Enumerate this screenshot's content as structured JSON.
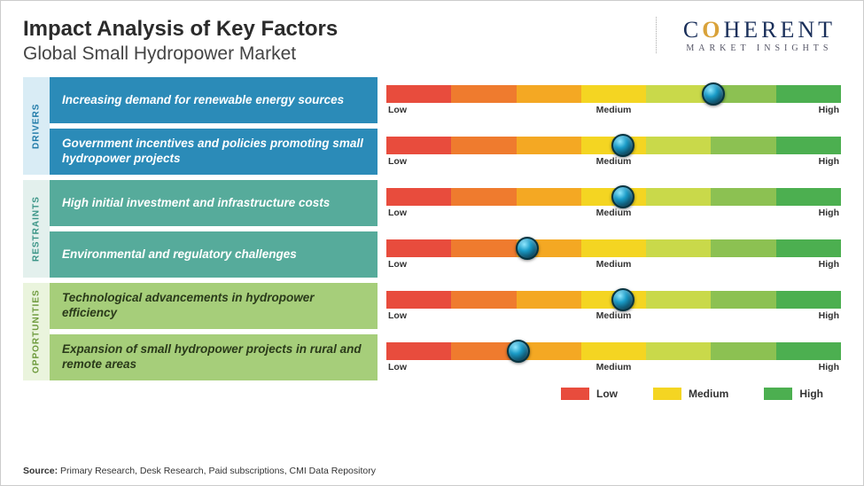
{
  "title": "Impact Analysis of Key Factors",
  "subtitle": "Global Small Hydropower Market",
  "logo": {
    "text_main": "COHERENT",
    "text_sub": "MARKET INSIGHTS"
  },
  "scale_segments": [
    "#e84c3d",
    "#ef7b2e",
    "#f4a823",
    "#f4d522",
    "#c9d94a",
    "#8cc152",
    "#4caf50"
  ],
  "scale_labels": {
    "low": "Low",
    "mid": "Medium",
    "high": "High"
  },
  "categories": [
    {
      "name": "DRIVERS",
      "tab_bg": "#d9ecf5",
      "tab_color": "#1f7aa8",
      "row_bg": "#2b8bb8",
      "rows": [
        {
          "label": "Increasing demand for renewable energy sources",
          "marker_pct": 72
        },
        {
          "label": "Government incentives and policies promoting small hydropower projects",
          "marker_pct": 52
        }
      ]
    },
    {
      "name": "RESTRAINTS",
      "tab_bg": "#e3f0ed",
      "tab_color": "#3a9486",
      "row_bg": "#56ab9b",
      "rows": [
        {
          "label": "High initial investment and infrastructure costs",
          "marker_pct": 52
        },
        {
          "label": "Environmental and regulatory challenges",
          "marker_pct": 31
        }
      ]
    },
    {
      "name": "OPPORTUNITIES",
      "tab_bg": "#eaf4dd",
      "tab_color": "#6f9b3e",
      "row_bg": "#a6ce7a",
      "row_text": "#2a3a1a",
      "rows": [
        {
          "label": "Technological advancements in hydropower efficiency",
          "marker_pct": 52
        },
        {
          "label": "Expansion of small hydropower projects in rural and remote areas",
          "marker_pct": 29
        }
      ]
    }
  ],
  "legend": [
    {
      "label": "Low",
      "color": "#e84c3d"
    },
    {
      "label": "Medium",
      "color": "#f4d522"
    },
    {
      "label": "High",
      "color": "#4caf50"
    }
  ],
  "source_prefix": "Source:",
  "source_text": " Primary Research, Desk Research, Paid subscriptions, CMI Data Repository"
}
